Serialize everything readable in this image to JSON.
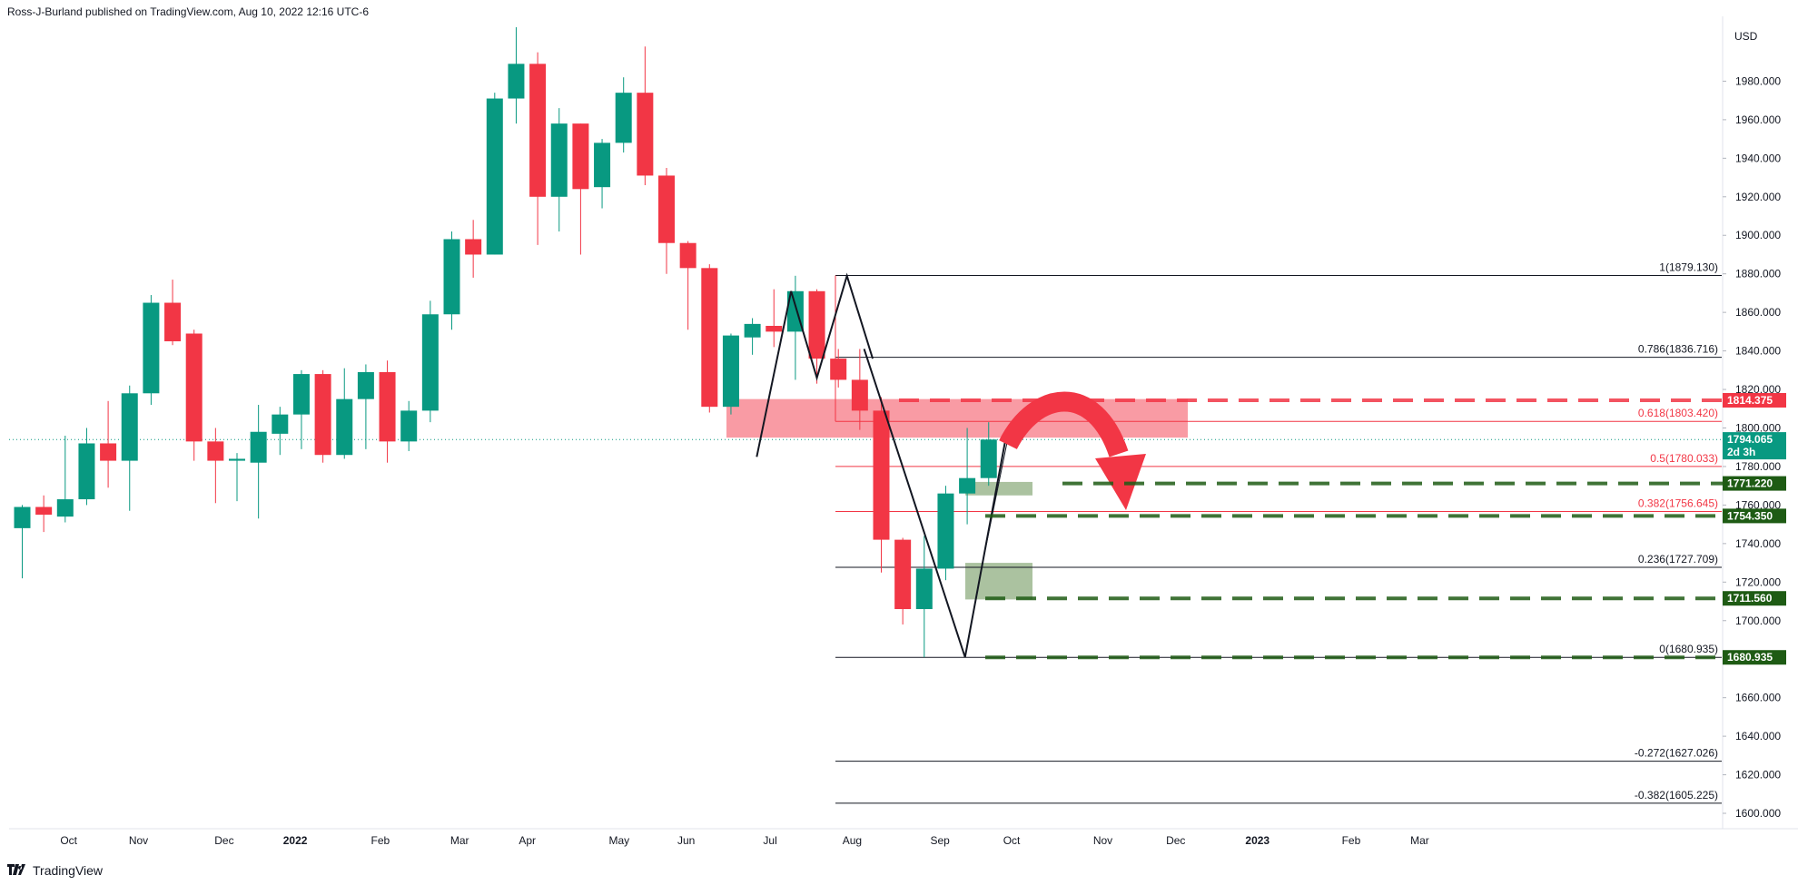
{
  "header": {
    "publisher": "Ross-J-Burland published on TradingView.com, Aug 10, 2022 12:16 UTC-6"
  },
  "footer": {
    "brand": "TradingView",
    "logo_icon": "tradingview-logo-icon"
  },
  "chart_data": {
    "type": "candlestick",
    "currency": "USD",
    "x_tick_labels": [
      "Oct",
      "Nov",
      "Dec",
      "2022",
      "Feb",
      "Mar",
      "Apr",
      "May",
      "Jun",
      "Jul",
      "Aug",
      "Sep",
      "Oct",
      "Nov",
      "Dec",
      "2023",
      "Feb",
      "Mar"
    ],
    "y_ticks": [
      1600,
      1620,
      1640,
      1660,
      1680,
      1700,
      1720,
      1740,
      1760,
      1780,
      1800,
      1820,
      1840,
      1860,
      1880,
      1900,
      1920,
      1940,
      1960,
      1980
    ],
    "y_tick_labels": [
      "1600.000",
      "1620.000",
      "1640.000",
      "1660.000",
      "1680.000",
      "1700.000",
      "1720.000",
      "1740.000",
      "1760.000",
      "1780.000",
      "1800.000",
      "1820.000",
      "1840.000",
      "1860.000",
      "1880.000",
      "1900.000",
      "1920.000",
      "1940.000",
      "1960.000",
      "1980.000"
    ],
    "ylim": [
      1592,
      2008
    ],
    "candles": [
      {
        "o": 1748,
        "h": 1760,
        "l": 1722,
        "c": 1759
      },
      {
        "o": 1759,
        "h": 1765,
        "l": 1746,
        "c": 1755
      },
      {
        "o": 1754,
        "h": 1796,
        "l": 1751,
        "c": 1763
      },
      {
        "o": 1763,
        "h": 1800,
        "l": 1760,
        "c": 1792
      },
      {
        "o": 1792,
        "h": 1814,
        "l": 1769,
        "c": 1783
      },
      {
        "o": 1783,
        "h": 1822,
        "l": 1757,
        "c": 1818
      },
      {
        "o": 1818,
        "h": 1869,
        "l": 1812,
        "c": 1865
      },
      {
        "o": 1865,
        "h": 1877,
        "l": 1843,
        "c": 1845
      },
      {
        "o": 1849,
        "h": 1851,
        "l": 1783,
        "c": 1793
      },
      {
        "o": 1793,
        "h": 1800,
        "l": 1761,
        "c": 1783
      },
      {
        "o": 1783,
        "h": 1787,
        "l": 1762,
        "c": 1784
      },
      {
        "o": 1782,
        "h": 1812,
        "l": 1753,
        "c": 1798
      },
      {
        "o": 1797,
        "h": 1811,
        "l": 1786,
        "c": 1807
      },
      {
        "o": 1807,
        "h": 1830,
        "l": 1789,
        "c": 1828
      },
      {
        "o": 1828,
        "h": 1830,
        "l": 1782,
        "c": 1786
      },
      {
        "o": 1786,
        "h": 1831,
        "l": 1784,
        "c": 1815
      },
      {
        "o": 1815,
        "h": 1833,
        "l": 1789,
        "c": 1829
      },
      {
        "o": 1829,
        "h": 1835,
        "l": 1782,
        "c": 1793
      },
      {
        "o": 1793,
        "h": 1814,
        "l": 1788,
        "c": 1809
      },
      {
        "o": 1809,
        "h": 1866,
        "l": 1803,
        "c": 1859
      },
      {
        "o": 1859,
        "h": 1902,
        "l": 1851,
        "c": 1898
      },
      {
        "o": 1898,
        "h": 1908,
        "l": 1878,
        "c": 1890
      },
      {
        "o": 1890,
        "h": 1974,
        "l": 1890,
        "c": 1971
      },
      {
        "o": 1971,
        "h": 2008,
        "l": 1958,
        "c": 1989
      },
      {
        "o": 1989,
        "h": 1995,
        "l": 1895,
        "c": 1920
      },
      {
        "o": 1920,
        "h": 1966,
        "l": 1902,
        "c": 1958
      },
      {
        "o": 1958,
        "h": 1958,
        "l": 1890,
        "c": 1924
      },
      {
        "o": 1925,
        "h": 1950,
        "l": 1914,
        "c": 1948
      },
      {
        "o": 1948,
        "h": 1982,
        "l": 1943,
        "c": 1974
      },
      {
        "o": 1974,
        "h": 1998,
        "l": 1926,
        "c": 1931
      },
      {
        "o": 1931,
        "h": 1935,
        "l": 1880,
        "c": 1896
      },
      {
        "o": 1896,
        "h": 1897,
        "l": 1851,
        "c": 1883
      },
      {
        "o": 1883,
        "h": 1885,
        "l": 1808,
        "c": 1811
      },
      {
        "o": 1811,
        "h": 1849,
        "l": 1807,
        "c": 1848
      },
      {
        "o": 1847,
        "h": 1857,
        "l": 1838,
        "c": 1854
      },
      {
        "o": 1853,
        "h": 1872,
        "l": 1842,
        "c": 1850
      },
      {
        "o": 1850,
        "h": 1879,
        "l": 1825,
        "c": 1871
      },
      {
        "o": 1871,
        "h": 1872,
        "l": 1823,
        "c": 1836
      },
      {
        "o": 1836,
        "h": 1841,
        "l": 1821,
        "c": 1825
      },
      {
        "o": 1825,
        "h": 1841,
        "l": 1799,
        "c": 1809
      },
      {
        "o": 1809,
        "h": 1816,
        "l": 1725,
        "c": 1742
      },
      {
        "o": 1742,
        "h": 1743,
        "l": 1698,
        "c": 1706
      },
      {
        "o": 1706,
        "h": 1744,
        "l": 1681,
        "c": 1727
      },
      {
        "o": 1727,
        "h": 1770,
        "l": 1721,
        "c": 1766
      },
      {
        "o": 1766,
        "h": 1800,
        "l": 1750,
        "c": 1774
      },
      {
        "o": 1774,
        "h": 1803,
        "l": 1770,
        "c": 1794
      }
    ],
    "fib_levels": [
      {
        "ratio": "1",
        "value": 1879.13,
        "label": "1(1879.130)",
        "color": "#131722"
      },
      {
        "ratio": "0.786",
        "value": 1836.716,
        "label": "0.786(1836.716)",
        "color": "#131722"
      },
      {
        "ratio": "0.618",
        "value": 1803.42,
        "label": "0.618(1803.420)",
        "color": "#f23645"
      },
      {
        "ratio": "0.5",
        "value": 1780.033,
        "label": "0.5(1780.033)",
        "color": "#f23645"
      },
      {
        "ratio": "0.382",
        "value": 1756.645,
        "label": "0.382(1756.645)",
        "color": "#f23645"
      },
      {
        "ratio": "0.236",
        "value": 1727.709,
        "label": "0.236(1727.709)",
        "color": "#131722"
      },
      {
        "ratio": "0",
        "value": 1680.935,
        "label": "0(1680.935)",
        "color": "#131722"
      },
      {
        "ratio": "-0.272",
        "value": 1627.026,
        "label": "-0.272(1627.026)",
        "color": "#131722"
      },
      {
        "ratio": "-0.382",
        "value": 1605.225,
        "label": "-0.382(1605.225)",
        "color": "#131722"
      }
    ],
    "price_tags": [
      {
        "value": 1814.375,
        "label": "1814.375",
        "color": "#f23645",
        "dashed": true
      },
      {
        "value": 1794.065,
        "label": "1794.065",
        "sub": "2d 3h",
        "color": "#089981",
        "dashed": false
      },
      {
        "value": 1771.22,
        "label": "1771.220",
        "color": "#1e5b14",
        "dashed": true
      },
      {
        "value": 1754.35,
        "label": "1754.350",
        "color": "#1e5b14",
        "dashed": true
      },
      {
        "value": 1711.56,
        "label": "1711.560",
        "color": "#1e5b14",
        "dashed": true
      },
      {
        "value": 1680.935,
        "label": "1680.935",
        "color": "#1e5b14",
        "dashed": true
      }
    ],
    "colors": {
      "up": "#089981",
      "down": "#f23645",
      "resistance_zone": "#f7828d",
      "support_zone": "#8fae80"
    }
  }
}
